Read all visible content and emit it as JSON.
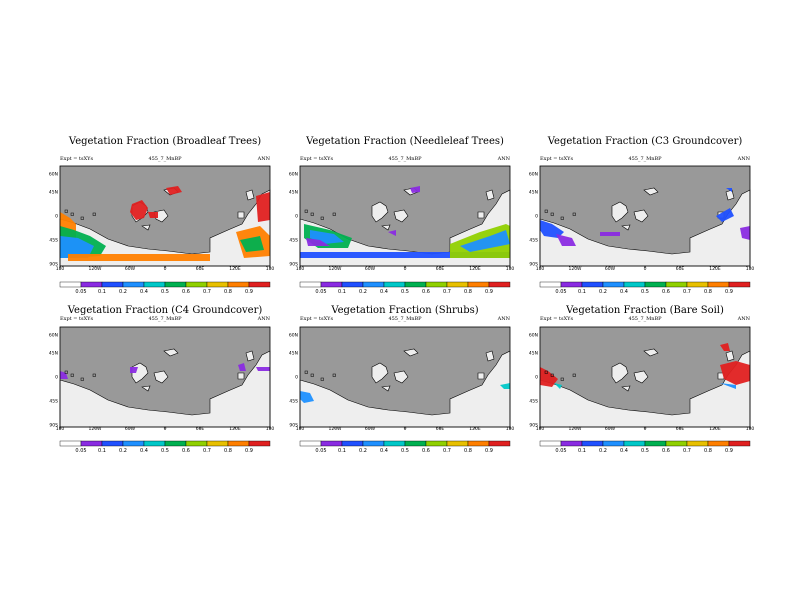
{
  "colorbar": {
    "labels": [
      "0.05",
      "0.1",
      "0.2",
      "0.4",
      "0.5",
      "0.6",
      "0.7",
      "0.8",
      "0.9"
    ],
    "colors": [
      "#ffffff",
      "#8a2be2",
      "#2050ff",
      "#1e90ff",
      "#00c8c8",
      "#00b050",
      "#90d000",
      "#e8c000",
      "#ff7f00",
      "#e02020"
    ]
  },
  "colors": {
    "land": "#999999",
    "ice": "#eeeeee",
    "coast": "#000000"
  },
  "lat_labels": [
    "60N",
    "45N",
    "0",
    "45S",
    "90S"
  ],
  "lon_labels": [
    "180",
    "120W",
    "60W",
    "0",
    "60E",
    "120E",
    "180"
  ],
  "panels": [
    {
      "title": "Vegetation Fraction (Broadleaf Trees)",
      "expt": "Expt = tsXYs",
      "case": "455_7_MnBP",
      "season": "ANN"
    },
    {
      "title": "Vegetation Fraction (Needleleaf Trees)",
      "expt": "Expt = tsXYs",
      "case": "455_7_MnBP",
      "season": "ANN"
    },
    {
      "title": "Vegetation Fraction (C3 Groundcover)",
      "expt": "Expt = tsXYs",
      "case": "455_7_MnBP",
      "season": "ANN"
    },
    {
      "title": "Vegetation Fraction (C4 Groundcover)",
      "expt": "Expt = tsXYs",
      "case": "455_7_MnBP",
      "season": "ANN"
    },
    {
      "title": "Vegetation Fraction (Shrubs)",
      "expt": "Expt = tsXYs",
      "case": "455_7_MnBP",
      "season": "ANN"
    },
    {
      "title": "Vegetation Fraction (Bare Soil)",
      "expt": "Expt = tsXYs",
      "case": "455_7_MnBP",
      "season": "ANN"
    }
  ]
}
